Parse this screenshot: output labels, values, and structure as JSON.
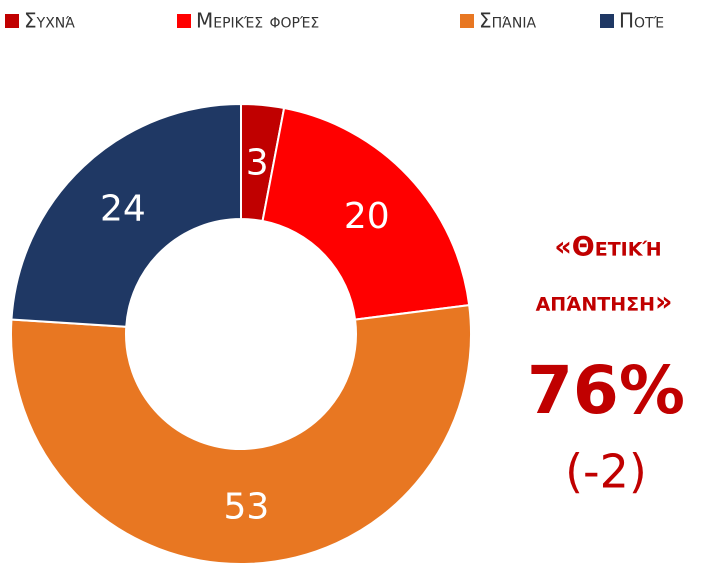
{
  "chart_data": {
    "type": "donut",
    "categories": [
      "Συχνά",
      "Μερικές φορές",
      "Σπάνια",
      "Ποτέ"
    ],
    "values": [
      3,
      20,
      53,
      24
    ],
    "colors": [
      "#c00000",
      "#ff0000",
      "#e87722",
      "#1f3864"
    ],
    "legend": "top",
    "annotation": {
      "lines": [
        "«Θετική",
        "απάντηση»"
      ],
      "headline": "76%",
      "change": "(-2)"
    }
  }
}
